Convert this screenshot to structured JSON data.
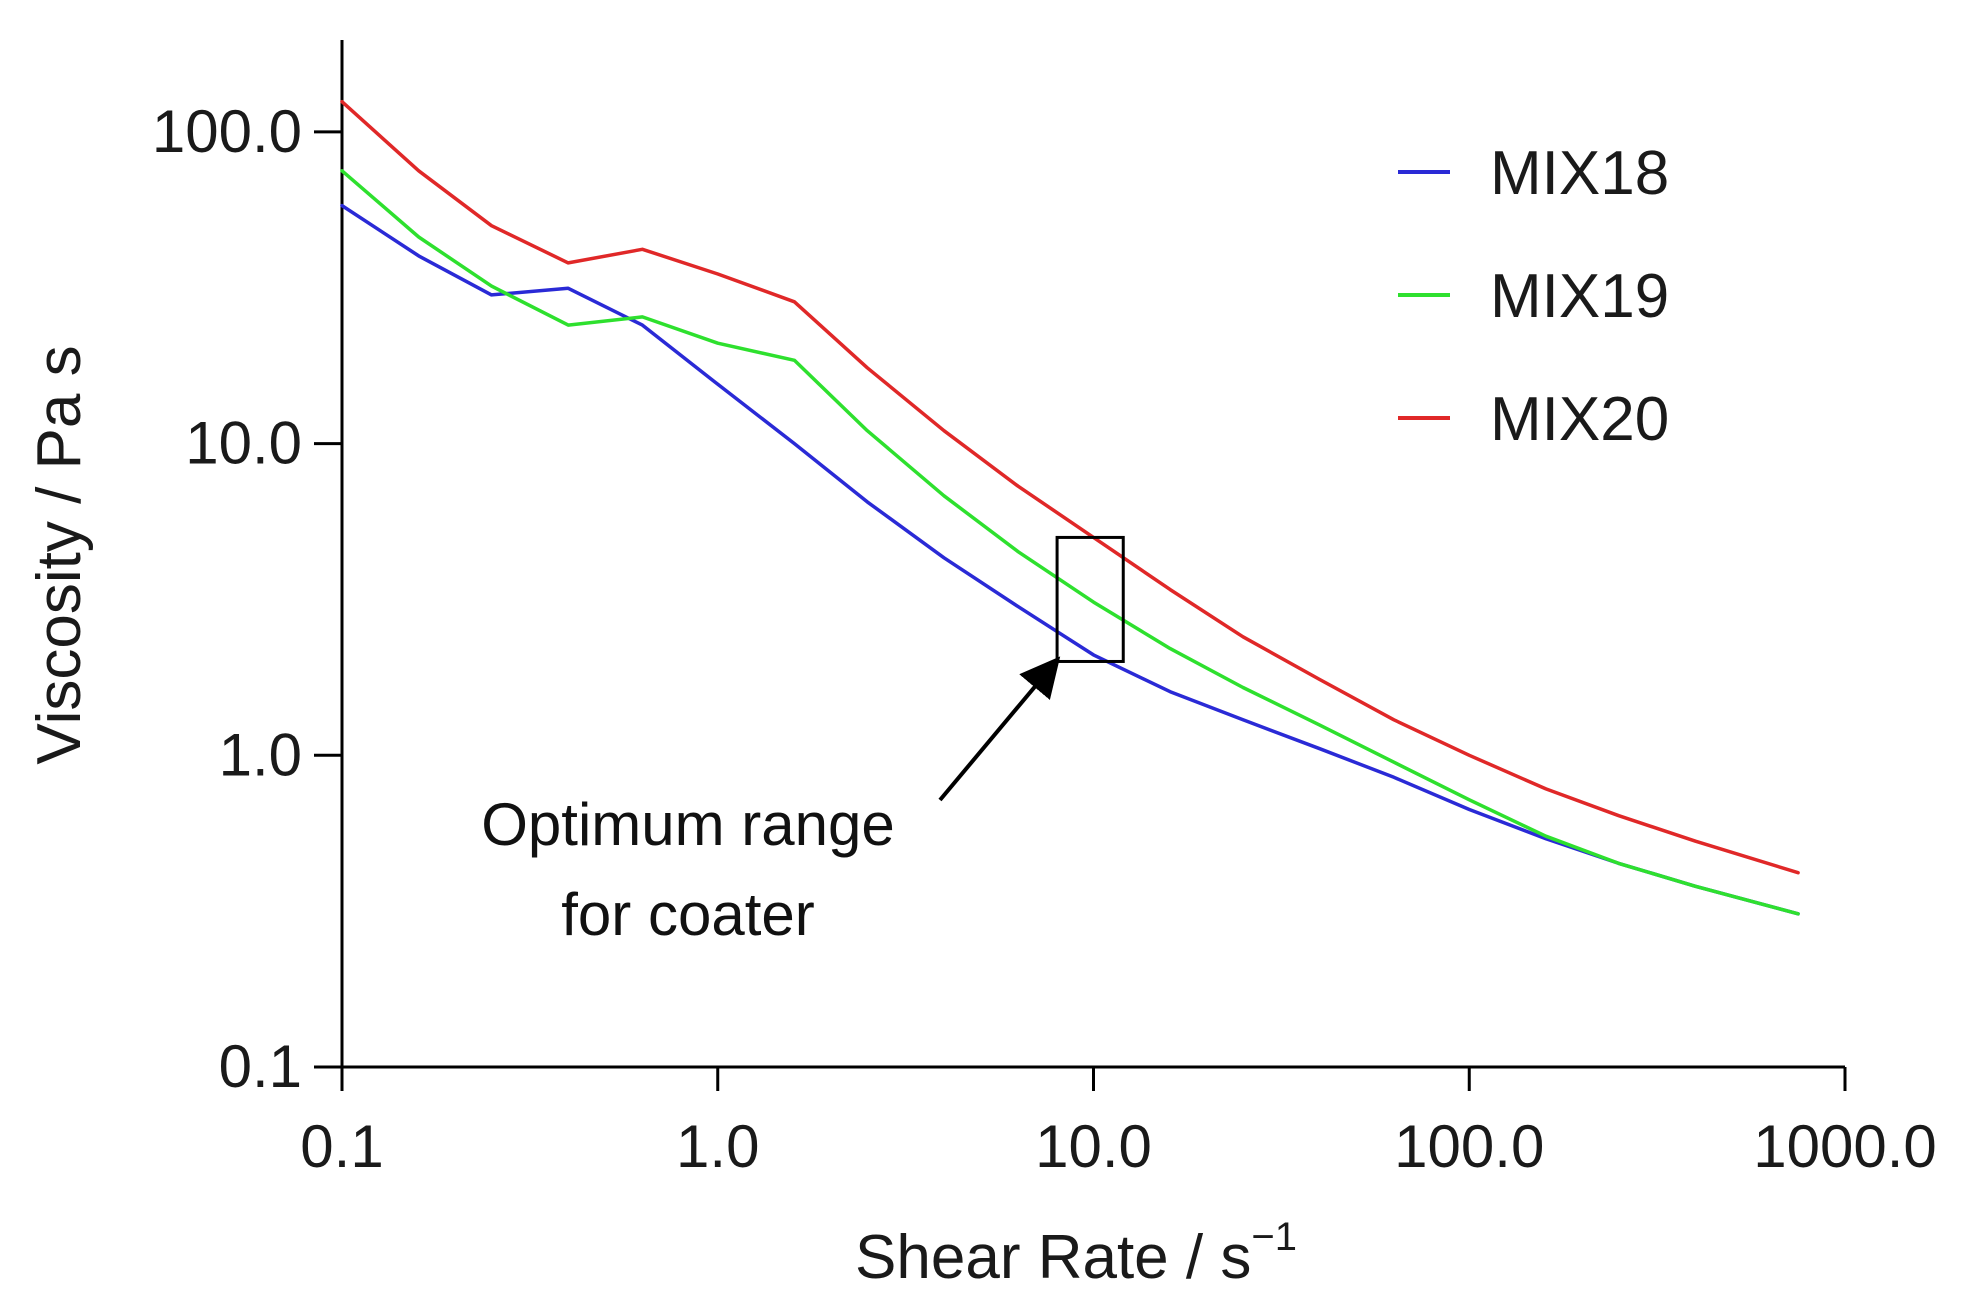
{
  "chart_data": {
    "type": "line",
    "title": "",
    "xlabel": "Shear Rate / s",
    "xlabel_sup": "−1",
    "ylabel": "Viscosity / Pa s",
    "xscale": "log",
    "yscale": "log",
    "xlim": [
      0.1,
      1000
    ],
    "ylim": [
      0.1,
      200
    ],
    "grid": false,
    "legend_position": "top-right",
    "x_ticks": [
      {
        "value": 0.1,
        "label": "0.1"
      },
      {
        "value": 1,
        "label": "1.0"
      },
      {
        "value": 10,
        "label": "10.0"
      },
      {
        "value": 100,
        "label": "100.0"
      },
      {
        "value": 1000,
        "label": "1000.0"
      }
    ],
    "y_ticks": [
      {
        "value": 0.1,
        "label": "0.1"
      },
      {
        "value": 1,
        "label": "1.0"
      },
      {
        "value": 10,
        "label": "10.0"
      },
      {
        "value": 100,
        "label": "100.0"
      }
    ],
    "series": [
      {
        "name": "MIX18",
        "color": "#2a2ad6",
        "x": [
          0.1,
          0.16,
          0.25,
          0.4,
          0.63,
          1.0,
          1.6,
          2.5,
          4.0,
          6.3,
          10,
          16,
          25,
          40,
          63,
          100,
          160,
          250,
          400,
          750
        ],
        "y": [
          58,
          40,
          30,
          31.5,
          24,
          15.5,
          10,
          6.5,
          4.3,
          3.0,
          2.1,
          1.6,
          1.3,
          1.05,
          0.85,
          0.67,
          0.54,
          0.45,
          0.38,
          0.31
        ]
      },
      {
        "name": "MIX19",
        "color": "#2ee02e",
        "x": [
          0.1,
          0.16,
          0.25,
          0.4,
          0.63,
          1.0,
          1.6,
          2.5,
          4.0,
          6.3,
          10,
          16,
          25,
          40,
          63,
          100,
          160,
          250,
          400,
          750
        ],
        "y": [
          75,
          46,
          32,
          24,
          25.5,
          21,
          18.5,
          11,
          6.8,
          4.5,
          3.1,
          2.2,
          1.65,
          1.25,
          0.95,
          0.72,
          0.55,
          0.45,
          0.38,
          0.31
        ]
      },
      {
        "name": "MIX20",
        "color": "#e02828",
        "x": [
          0.1,
          0.16,
          0.25,
          0.4,
          0.63,
          1.0,
          1.6,
          2.5,
          4.0,
          6.3,
          10,
          16,
          25,
          40,
          63,
          100,
          160,
          250,
          400,
          750
        ],
        "y": [
          125,
          75,
          50,
          38,
          42,
          35,
          28.5,
          17.5,
          11,
          7.3,
          5.0,
          3.4,
          2.4,
          1.75,
          1.3,
          1.0,
          0.78,
          0.64,
          0.53,
          0.42
        ]
      }
    ],
    "annotations": [
      {
        "lines": [
          "Optimum range",
          "for coater"
        ],
        "box_x": [
          8,
          12
        ],
        "box_y": [
          2,
          5
        ],
        "arrow_to": [
          8,
          2.2
        ]
      }
    ]
  }
}
